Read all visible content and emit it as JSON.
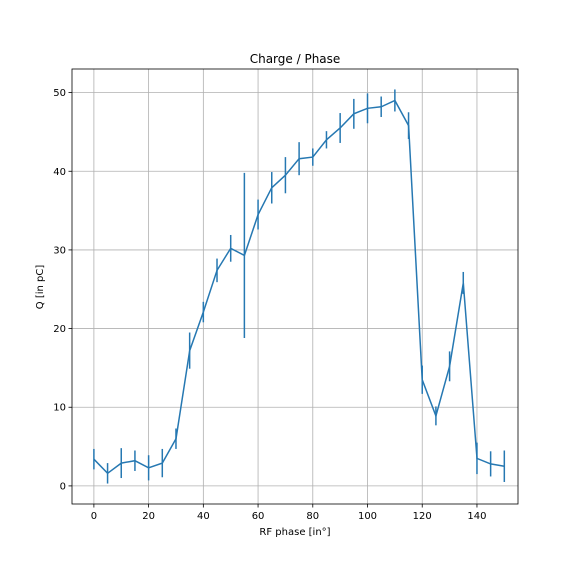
{
  "chart_data": {
    "type": "line",
    "title": "Charge / Phase",
    "xlabel": "RF phase [in°]",
    "ylabel": "Q   [in   pC]",
    "xlim": [
      -8,
      155
    ],
    "ylim": [
      -2.3,
      53
    ],
    "xticks": [
      0,
      20,
      40,
      60,
      80,
      100,
      120,
      140
    ],
    "yticks": [
      0,
      10,
      20,
      30,
      40,
      50
    ],
    "grid": true,
    "color": "#2678b2",
    "series": [
      {
        "x": [
          0,
          5,
          10,
          15,
          20,
          25,
          30,
          35,
          40,
          45,
          50,
          55,
          60,
          65,
          70,
          75,
          80,
          85,
          90,
          95,
          100,
          105,
          110,
          115,
          120,
          125,
          130,
          135,
          140,
          145,
          150
        ],
        "y": [
          3.4,
          1.6,
          2.9,
          3.2,
          2.3,
          2.9,
          6.0,
          17.2,
          22.1,
          27.4,
          30.2,
          29.3,
          34.5,
          37.9,
          39.5,
          41.6,
          41.8,
          44.0,
          45.5,
          47.3,
          48.0,
          48.2,
          49.0,
          45.8,
          13.5,
          8.9,
          15.2,
          25.8,
          3.5,
          2.8,
          2.5
        ],
        "yerr": [
          1.3,
          1.3,
          1.9,
          1.3,
          1.6,
          1.8,
          1.3,
          2.3,
          1.3,
          1.5,
          1.7,
          10.5,
          1.9,
          2.0,
          2.3,
          2.1,
          1.1,
          1.1,
          1.9,
          1.9,
          1.9,
          1.3,
          1.4,
          1.7,
          1.8,
          1.2,
          1.9,
          1.4,
          2.0,
          1.6,
          2.0
        ]
      }
    ]
  }
}
